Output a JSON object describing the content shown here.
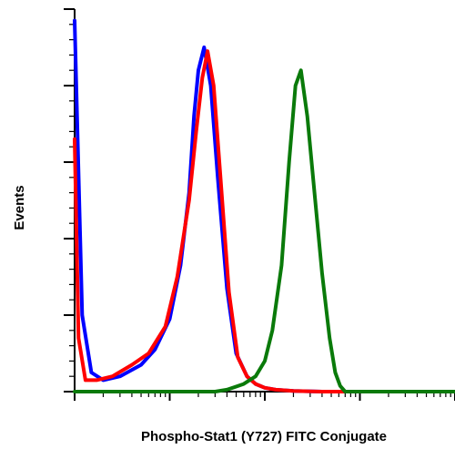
{
  "chart_data": {
    "type": "line",
    "title": "",
    "xlabel": "Phospho-Stat1 (Y727) FITC Conjugate",
    "ylabel": "Events",
    "x_scale": "log",
    "xlim": [
      0.1,
      1000
    ],
    "ylim": [
      0,
      100
    ],
    "grid": false,
    "legend": "none",
    "series": [
      {
        "color": "#0000ff",
        "x": [
          0.1,
          0.12,
          0.15,
          0.2,
          0.3,
          0.5,
          0.7,
          1.0,
          1.3,
          1.6,
          1.8,
          2.0,
          2.3,
          2.7,
          3.2,
          4.0,
          5.0,
          6.5,
          8.0,
          10,
          13,
          20,
          40,
          100,
          1000
        ],
        "y": [
          97,
          20,
          5,
          3,
          4,
          7,
          11,
          19,
          33,
          52,
          72,
          84,
          90,
          80,
          56,
          27,
          10,
          4,
          2,
          1,
          0.5,
          0.2,
          0,
          0,
          0
        ]
      },
      {
        "color": "#ff0000",
        "x": [
          0.1,
          0.11,
          0.13,
          0.17,
          0.25,
          0.4,
          0.6,
          0.9,
          1.2,
          1.6,
          1.9,
          2.2,
          2.5,
          2.9,
          3.4,
          4.2,
          5.2,
          6.5,
          8.0,
          10,
          13,
          20,
          40,
          100,
          1000
        ],
        "y": [
          66,
          14,
          3,
          3,
          4,
          7,
          10,
          17,
          30,
          50,
          68,
          82,
          89,
          80,
          57,
          26,
          9,
          4,
          2,
          1,
          0.5,
          0.2,
          0,
          0,
          0
        ]
      },
      {
        "color": "#0a7a0a",
        "x": [
          0.1,
          2.0,
          3.0,
          4.0,
          6.0,
          8.0,
          10,
          12,
          15,
          18,
          21,
          24,
          28,
          33,
          40,
          48,
          55,
          62,
          70,
          100,
          1000
        ],
        "y": [
          0,
          0,
          0,
          0.5,
          2,
          4,
          8,
          16,
          33,
          60,
          80,
          84,
          72,
          53,
          31,
          14,
          5,
          1.5,
          0,
          0,
          0
        ]
      }
    ]
  }
}
